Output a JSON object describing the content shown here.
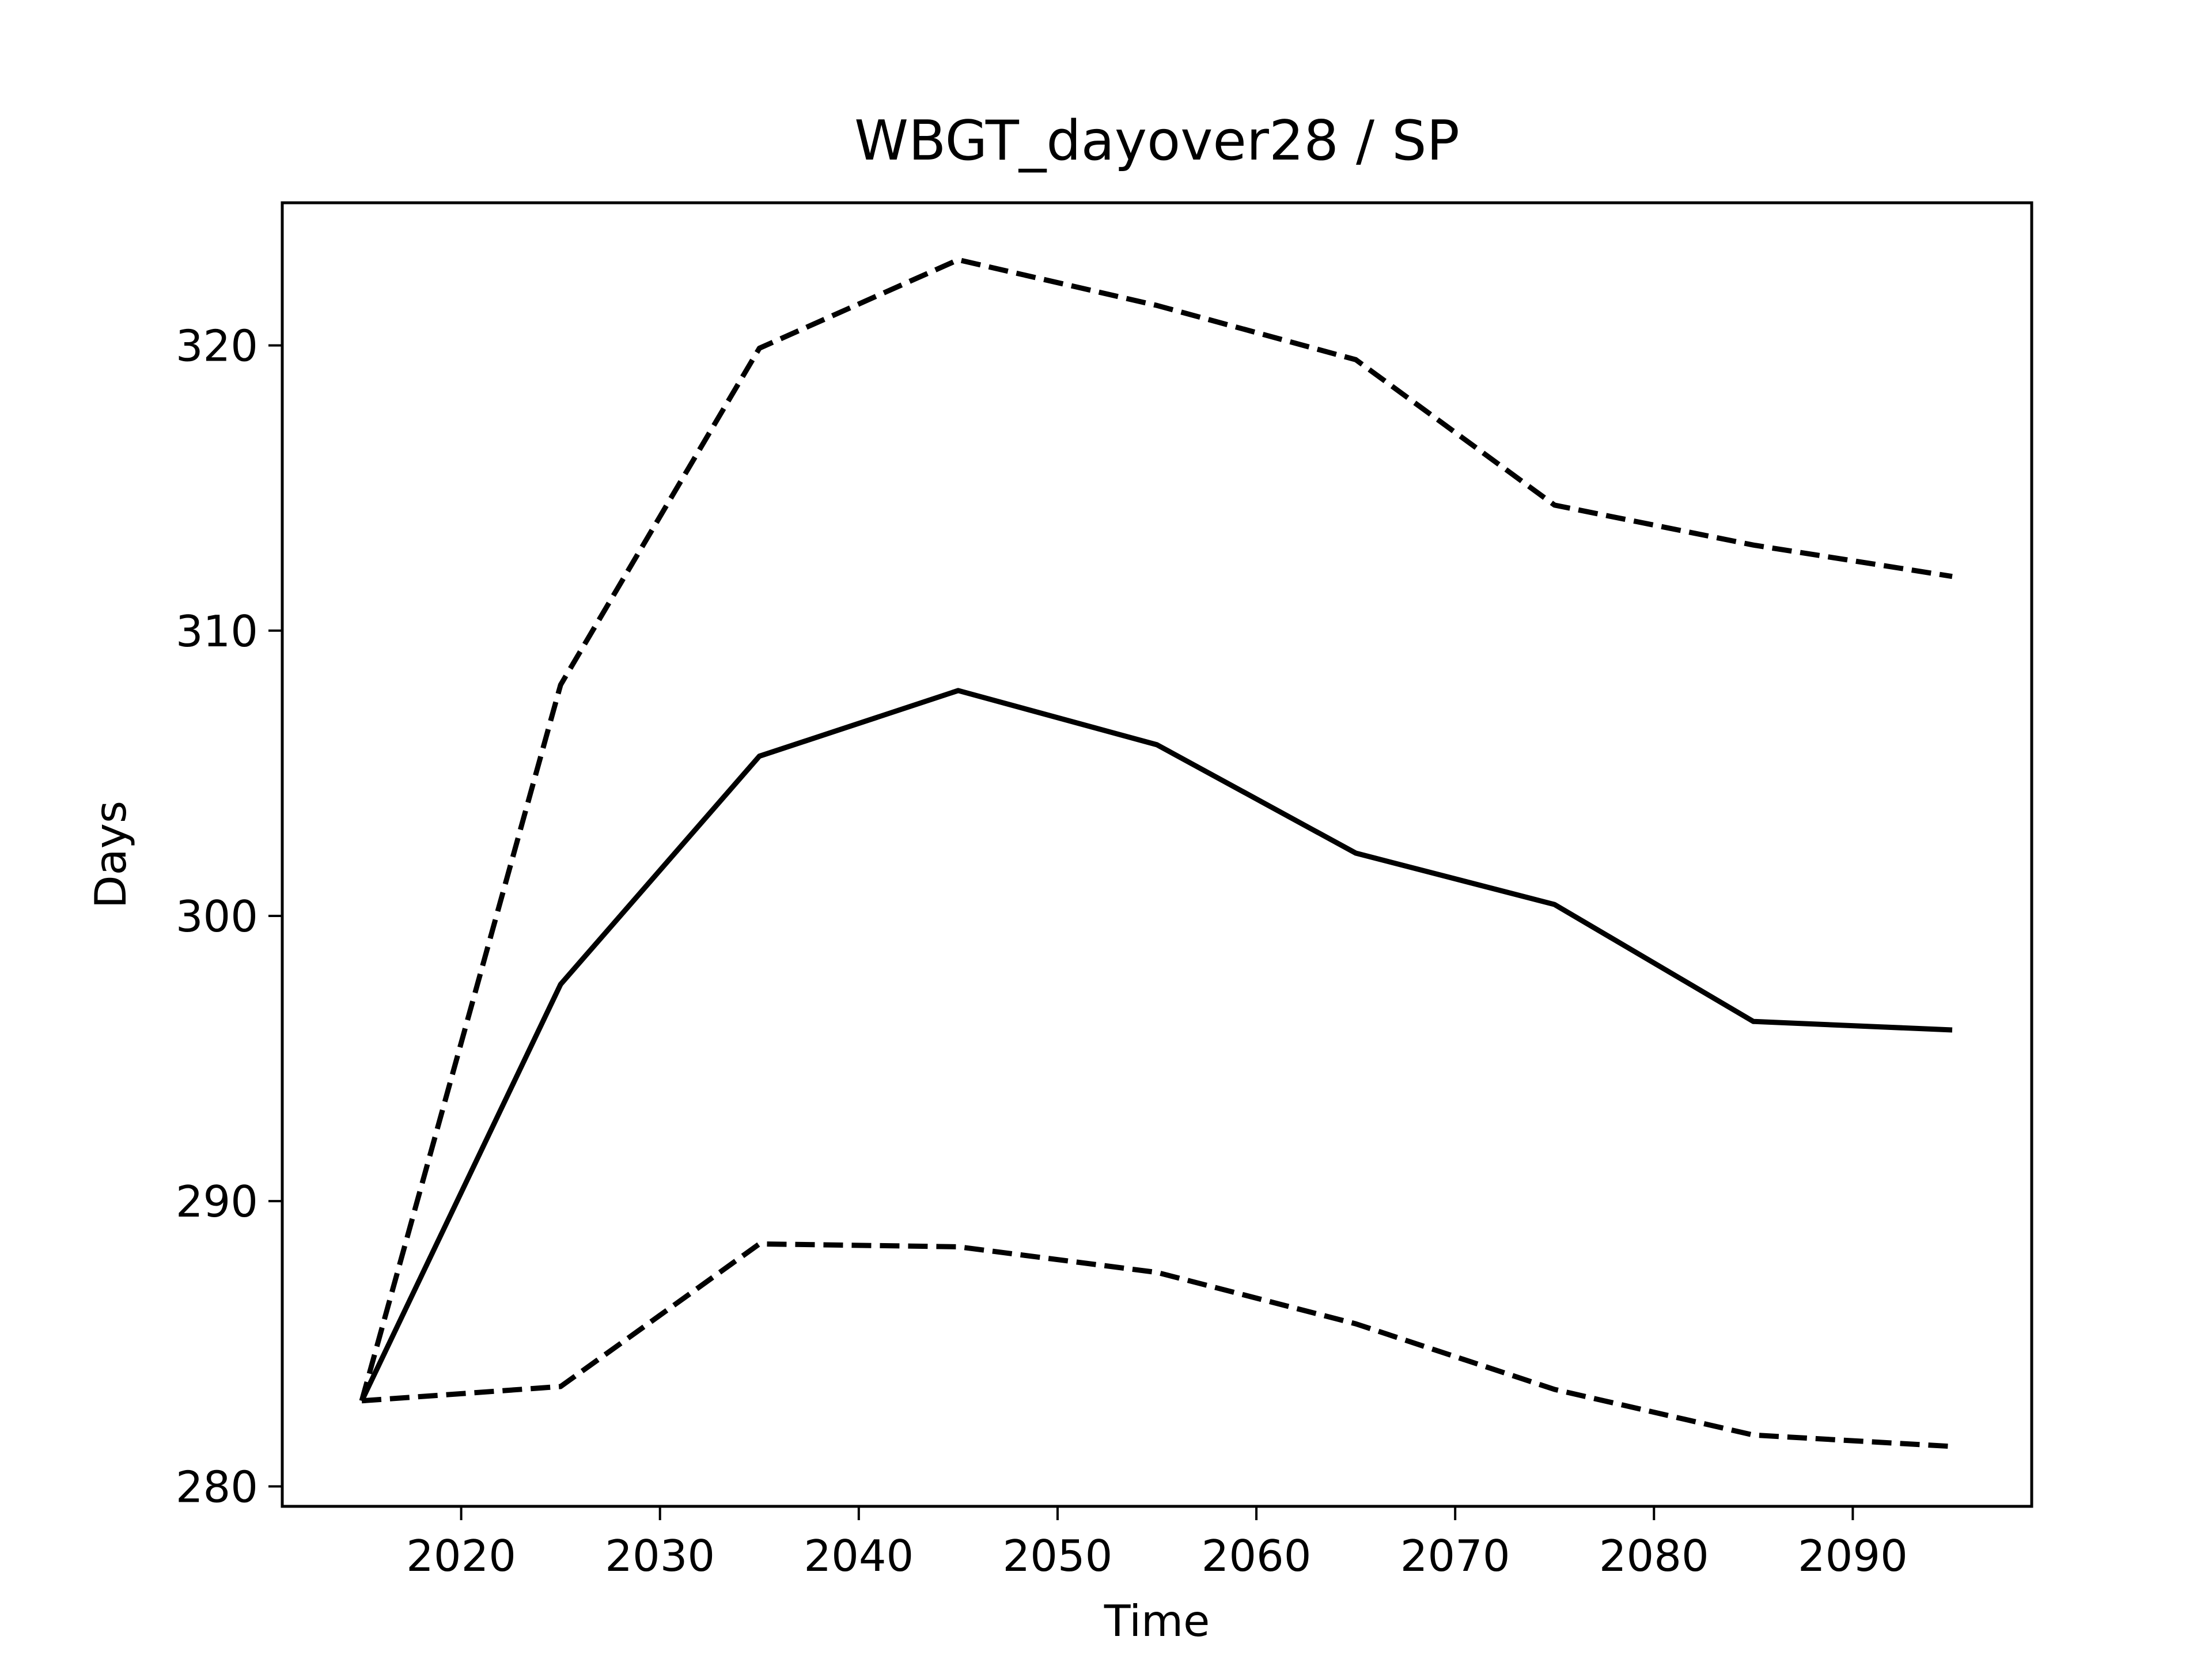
{
  "chart_data": {
    "type": "line",
    "title": "WBGT_dayover28 / SP",
    "xlabel": "Time",
    "ylabel": "Days",
    "xlim": [
      2011,
      2099
    ],
    "ylim": [
      279.3,
      325
    ],
    "xticks": [
      2020,
      2030,
      2040,
      2050,
      2060,
      2070,
      2080,
      2090
    ],
    "yticks": [
      280,
      290,
      300,
      310,
      320
    ],
    "grid": false,
    "legend": "none",
    "x": [
      2015,
      2025,
      2035,
      2045,
      2055,
      2065,
      2075,
      2085,
      2095
    ],
    "series": [
      {
        "style": "solid",
        "color": "#000000",
        "values": [
          283.0,
          297.6,
          305.6,
          307.9,
          306.0,
          302.2,
          300.4,
          296.3,
          296.0
        ]
      },
      {
        "style": "dashed",
        "color": "#000000",
        "values": [
          283.0,
          308.1,
          319.9,
          323.0,
          321.4,
          319.5,
          314.4,
          313.0,
          311.9
        ]
      },
      {
        "style": "dashed",
        "color": "#000000",
        "values": [
          283.0,
          283.5,
          288.5,
          288.4,
          287.5,
          285.7,
          283.4,
          281.8,
          281.4
        ]
      }
    ]
  }
}
